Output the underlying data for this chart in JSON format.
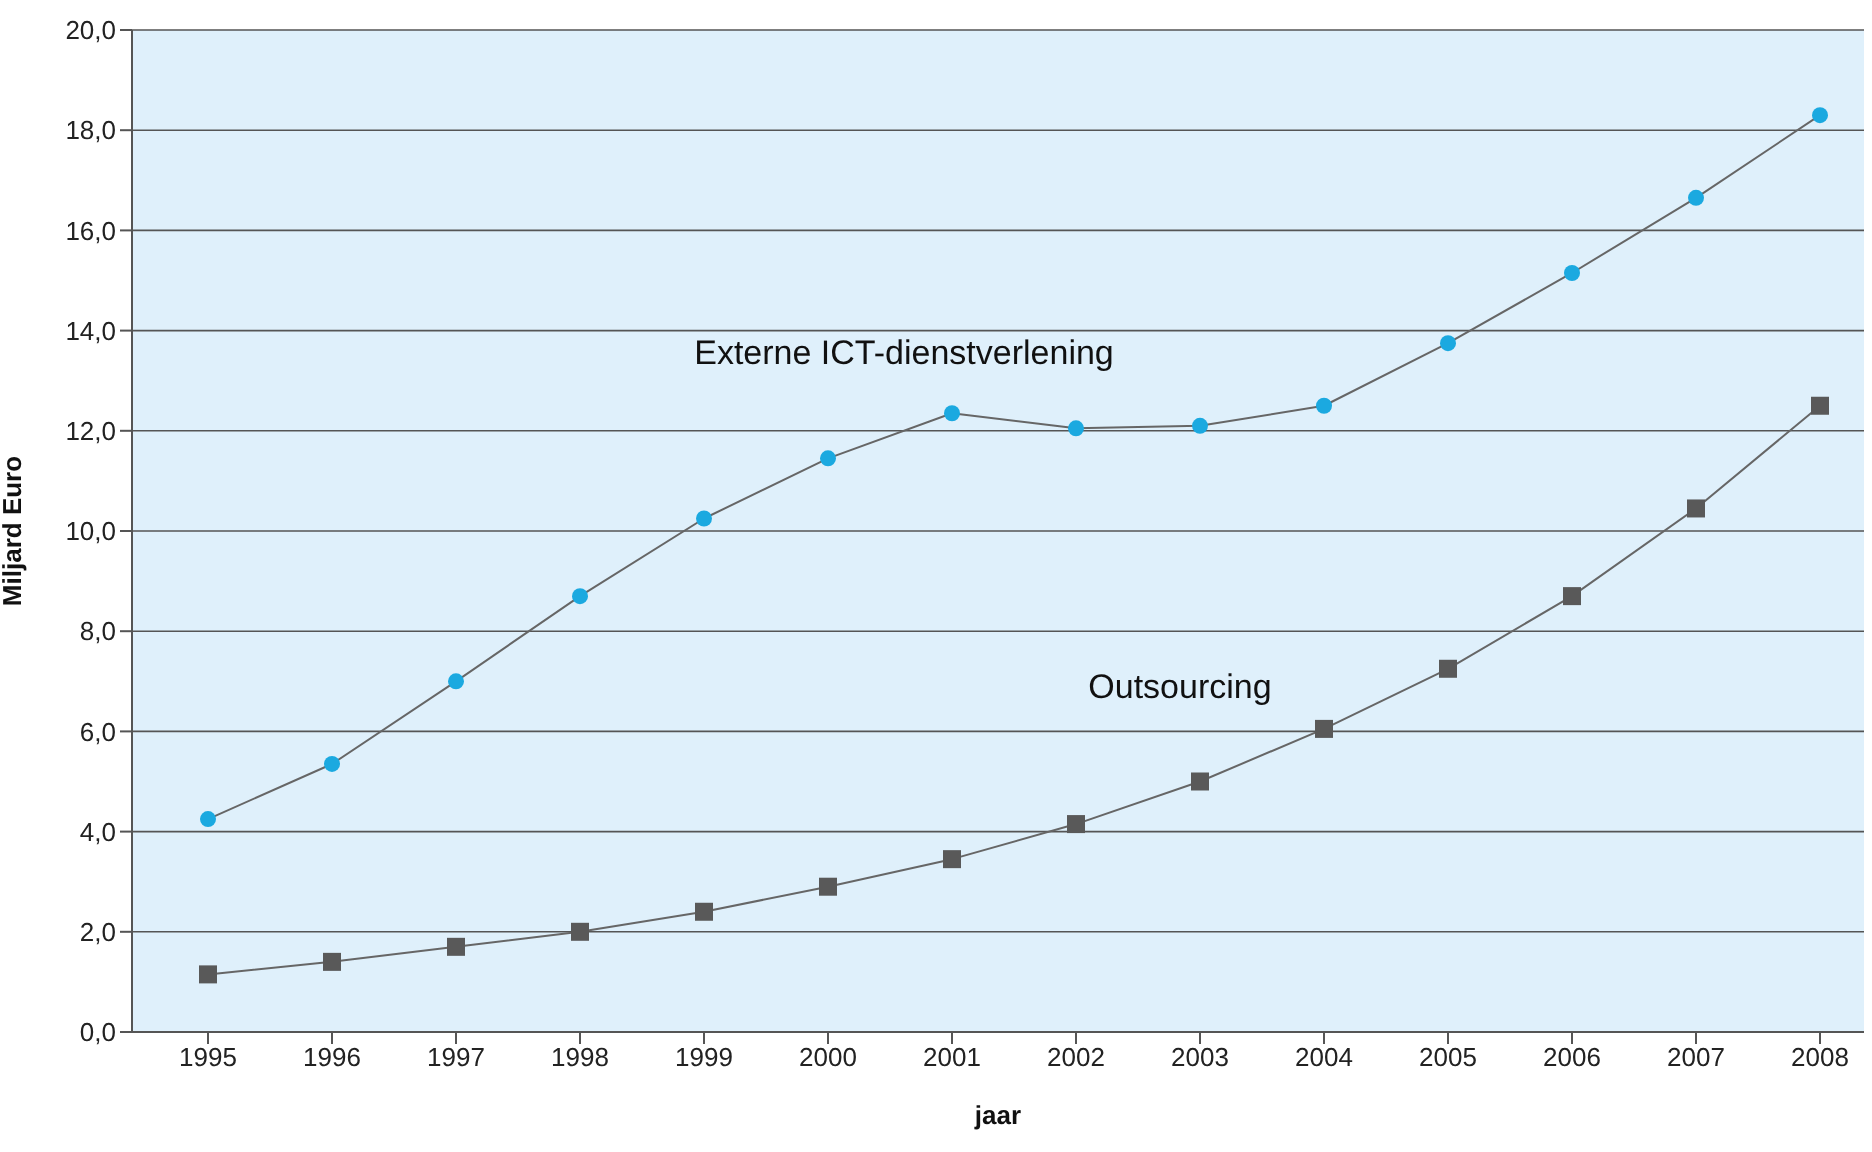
{
  "chart_data": {
    "type": "line",
    "xlabel": "jaar",
    "ylabel": "Miljard Euro",
    "categories": [
      "1995",
      "1996",
      "1997",
      "1998",
      "1999",
      "2000",
      "2001",
      "2002",
      "2003",
      "2004",
      "2005",
      "2006",
      "2007",
      "2008"
    ],
    "series": [
      {
        "name": "Externe ICT-dienstverlening",
        "color": "#1ba9e0",
        "marker": "circle",
        "values": [
          4.25,
          5.35,
          7.0,
          8.7,
          10.25,
          11.45,
          12.35,
          12.05,
          12.1,
          12.5,
          13.75,
          15.15,
          16.65,
          18.3
        ]
      },
      {
        "name": "Outsourcing",
        "color": "#595959",
        "marker": "square",
        "values": [
          1.15,
          1.4,
          1.7,
          2.0,
          2.4,
          2.9,
          3.45,
          4.15,
          5.0,
          6.05,
          7.25,
          8.7,
          10.45,
          12.5
        ]
      }
    ],
    "ylim": [
      0,
      20
    ],
    "yticks": [
      {
        "value": 0,
        "label": "0,0"
      },
      {
        "value": 2,
        "label": "2,0"
      },
      {
        "value": 4,
        "label": "4,0"
      },
      {
        "value": 6,
        "label": "6,0"
      },
      {
        "value": 8,
        "label": "8,0"
      },
      {
        "value": 10,
        "label": "10,0"
      },
      {
        "value": 12,
        "label": "12,0"
      },
      {
        "value": 14,
        "label": "14,0"
      },
      {
        "value": 16,
        "label": "16,0"
      },
      {
        "value": 18,
        "label": "18,0"
      },
      {
        "value": 20,
        "label": "20,0"
      }
    ],
    "grid": "y",
    "line_style": "solid"
  }
}
